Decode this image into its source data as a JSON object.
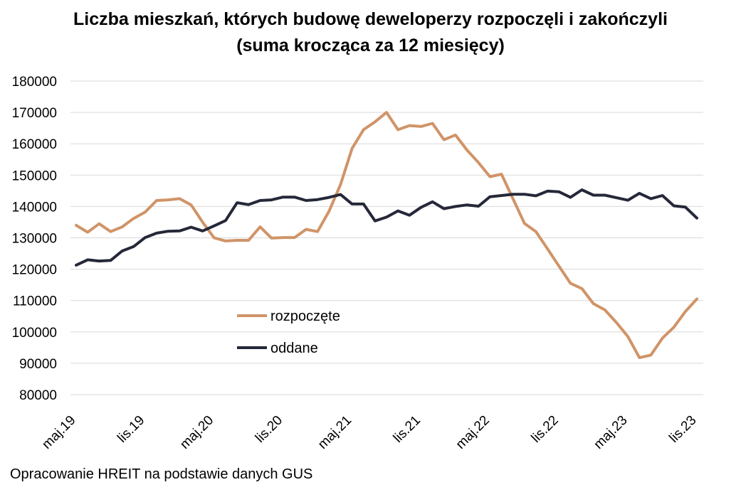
{
  "chart_data": {
    "type": "line",
    "title_line1": "Liczba mieszkań, których budowę deweloperzy rozpoczęli i zakończyli",
    "title_line2": "(suma krocząca za 12 miesięcy)",
    "xlabel": "",
    "ylabel": "",
    "ylim": [
      80000,
      180000
    ],
    "y_ticks": [
      "80000",
      "90000",
      "100000",
      "110000",
      "120000",
      "130000",
      "140000",
      "150000",
      "160000",
      "170000",
      "180000"
    ],
    "x_ticks": [
      {
        "index": 0,
        "label": "maj.19"
      },
      {
        "index": 6,
        "label": "lis.19"
      },
      {
        "index": 12,
        "label": "maj.20"
      },
      {
        "index": 18,
        "label": "lis.20"
      },
      {
        "index": 24,
        "label": "maj.21"
      },
      {
        "index": 30,
        "label": "lis.21"
      },
      {
        "index": 36,
        "label": "maj.22"
      },
      {
        "index": 42,
        "label": "lis.22"
      },
      {
        "index": 48,
        "label": "maj.23"
      },
      {
        "index": 54,
        "label": "lis.23"
      }
    ],
    "legend_position": "center-left",
    "series": [
      {
        "name": "rozpoczęte",
        "color": "#D09468",
        "values": [
          134000,
          131800,
          134500,
          132000,
          133500,
          136200,
          138200,
          141900,
          142100,
          142500,
          140500,
          135000,
          130000,
          129000,
          129200,
          129200,
          133500,
          129900,
          130100,
          130100,
          132700,
          132000,
          138500,
          147000,
          158500,
          164500,
          167000,
          170000,
          164500,
          165800,
          165500,
          166500,
          161300,
          162800,
          158000,
          154000,
          149500,
          150300,
          142500,
          134600,
          132000,
          126500,
          121000,
          115500,
          113800,
          109000,
          107000,
          103000,
          98500,
          91800,
          92600,
          98000,
          101500,
          106500,
          110500
        ]
      },
      {
        "name": "oddane",
        "color": "#252839",
        "values": [
          121300,
          123000,
          122600,
          122800,
          125800,
          127200,
          130100,
          131500,
          132100,
          132200,
          133400,
          132200,
          133800,
          135500,
          141200,
          140600,
          141900,
          142100,
          143000,
          143000,
          141900,
          142200,
          142900,
          143800,
          140800,
          140800,
          135400,
          136600,
          138600,
          137200,
          139700,
          141500,
          139300,
          140000,
          140500,
          140100,
          143100,
          143500,
          143900,
          143900,
          143400,
          144900,
          144700,
          142900,
          145300,
          143600,
          143600,
          142800,
          142000,
          144200,
          142500,
          143500,
          140200,
          139800,
          136300
        ]
      }
    ]
  },
  "footer": {
    "source": "Opracowanie HREIT na podstawie danych GUS"
  }
}
